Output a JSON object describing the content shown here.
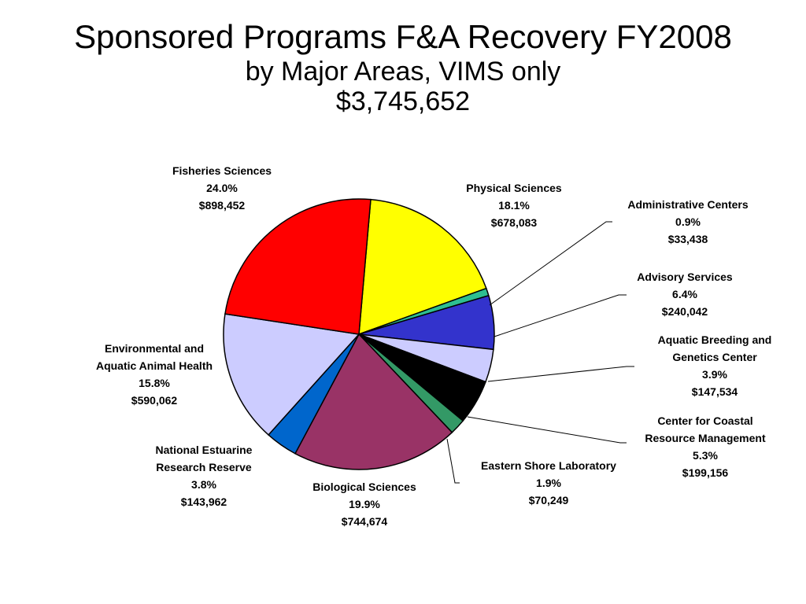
{
  "title": {
    "line1": "Sponsored Programs F&A Recovery FY2008",
    "line2": "by Major Areas, VIMS only",
    "line3": "$3,745,652"
  },
  "chart_data": {
    "type": "pie",
    "title": "Sponsored Programs F&A Recovery FY2008",
    "subtitle": "by Major Areas, VIMS only",
    "total": "$3,745,652",
    "start_angle_deg": -85,
    "direction": "clockwise",
    "slices": [
      {
        "name": "Physical Sciences",
        "label_lines": [
          "Physical Sciences"
        ],
        "percent": "18.1%",
        "amount": "$678,083",
        "value": 678083,
        "color": "#FFFF00"
      },
      {
        "name": "Administrative Centers",
        "label_lines": [
          "Administrative Centers"
        ],
        "percent": "0.9%",
        "amount": "$33,438",
        "value": 33438,
        "color": "#2EBF91"
      },
      {
        "name": "Advisory Services",
        "label_lines": [
          "Advisory Services"
        ],
        "percent": "6.4%",
        "amount": "$240,042",
        "value": 240042,
        "color": "#3333CC"
      },
      {
        "name": "Aquatic Breeding and Genetics Center",
        "label_lines": [
          "Aquatic Breeding and",
          "Genetics Center"
        ],
        "percent": "3.9%",
        "amount": "$147,534",
        "value": 147534,
        "color": "#CCCCFF"
      },
      {
        "name": "Center for Coastal Resource Management",
        "label_lines": [
          "Center for Coastal",
          "Resource Management"
        ],
        "percent": "5.3%",
        "amount": "$199,156",
        "value": 199156,
        "color": "#000000"
      },
      {
        "name": "Eastern Shore Laboratory",
        "label_lines": [
          "Eastern Shore Laboratory"
        ],
        "percent": "1.9%",
        "amount": "$70,249",
        "value": 70249,
        "color": "#339966"
      },
      {
        "name": "Biological Sciences",
        "label_lines": [
          "Biological Sciences"
        ],
        "percent": "19.9%",
        "amount": "$744,674",
        "value": 744674,
        "color": "#993366"
      },
      {
        "name": "National Estuarine Research Reserve",
        "label_lines": [
          "National Estuarine",
          "Research Reserve"
        ],
        "percent": "3.8%",
        "amount": "$143,962",
        "value": 143962,
        "color": "#0066CC"
      },
      {
        "name": "Environmental and Aquatic Animal Health",
        "label_lines": [
          "Environmental and",
          "Aquatic Animal Health"
        ],
        "percent": "15.8%",
        "amount": "$590,062",
        "value": 590062,
        "color": "#CCCCFF"
      },
      {
        "name": "Fisheries Sciences",
        "label_lines": [
          "Fisheries Sciences"
        ],
        "percent": "24.0%",
        "amount": "$898,452",
        "value": 898452,
        "color": "#FF0000"
      }
    ],
    "legend": "none",
    "labels": "outside with leader lines"
  }
}
